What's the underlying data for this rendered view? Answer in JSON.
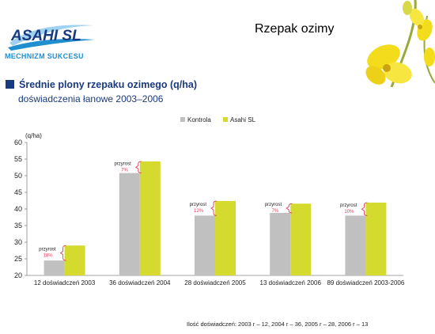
{
  "brand": {
    "logo_text": "ASAHI SL",
    "tagline": "MECHNIZM SUKCESU"
  },
  "slide_title": "Rzepak ozimy",
  "heading": "Średnie plony rzepaku ozimego (q/ha)",
  "subheading": "doświadczenia łanowe 2003–2006",
  "footnote": "Ilość doświadczeń:  2003 r – 12,  2004 r – 36,  2005 r – 28,  2006 r – 13",
  "colors": {
    "kontrola": "#c0c0c0",
    "asahi": "#d4da2e",
    "bracket": "#e53a5a",
    "heading": "#1a3a80",
    "brand": "#1f8fd0"
  },
  "chart_data": {
    "type": "bar",
    "ylabel": "(q/ha)",
    "ylim": [
      20,
      60
    ],
    "yticks": [
      20,
      25,
      30,
      35,
      40,
      45,
      50,
      55,
      60
    ],
    "legend_position": "top",
    "categories": [
      "12 doświadczeń 2003",
      "36 doświadczeń 2004",
      "28 doświadczeń 2005",
      "13 doświadczeń 2006",
      "89 doświadczeń 2003-2006"
    ],
    "series": [
      {
        "name": "Kontrola",
        "values": [
          24.5,
          50.8,
          38.0,
          38.8,
          38.0
        ]
      },
      {
        "name": "Asahi SL",
        "values": [
          29.0,
          54.3,
          42.4,
          41.6,
          41.9
        ]
      }
    ],
    "annotations": [
      {
        "label": "przyrost",
        "value": "18%"
      },
      {
        "label": "przyrost",
        "value": "7%"
      },
      {
        "label": "przyrost",
        "value": "12%"
      },
      {
        "label": "przyrost",
        "value": "7%"
      },
      {
        "label": "przyrost",
        "value": "10%"
      }
    ]
  }
}
